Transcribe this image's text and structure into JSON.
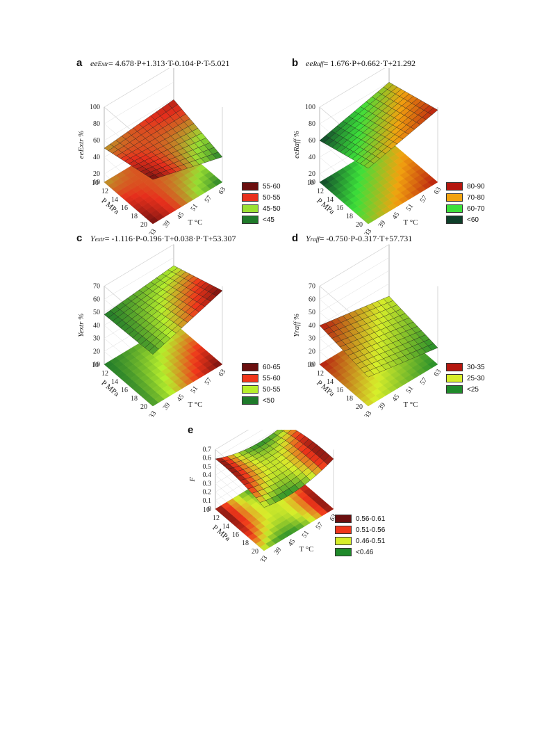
{
  "chart_data": [
    {
      "type": "surface",
      "panel": "a",
      "equation_var": "ee",
      "equation_sub": "Extr",
      "equation_rhs": "= 4.678·P+1.313·T-0.104·P·T-5.021",
      "zlabel": "ee",
      "zlabel_sub": "Extr",
      "zlabel_unit": "%",
      "xlabel": "T °C",
      "ylabel": "P MPa",
      "z_ticks": [
        "100",
        "80",
        "60",
        "40",
        "20",
        "10"
      ],
      "y_ticks": [
        "10",
        "12",
        "14",
        "16",
        "18",
        "20"
      ],
      "x_ticks": [
        "33",
        "39",
        "45",
        "51",
        "57",
        "63"
      ],
      "coef": {
        "P": 4.678,
        "T": 1.313,
        "PT": -0.104,
        "c": -5.021
      },
      "legend": [
        {
          "label": "55-60",
          "color": "#6b0f0f"
        },
        {
          "label": "50-55",
          "color": "#e8301c"
        },
        {
          "label": "45-50",
          "color": "#9be032"
        },
        {
          "label": "<45",
          "color": "#1f7a2a"
        }
      ]
    },
    {
      "type": "surface",
      "panel": "b",
      "equation_var": "ee",
      "equation_sub": "Raff",
      "equation_rhs": "= 1.676·P+0.662·T+21.292",
      "zlabel": "ee",
      "zlabel_sub": "Raff",
      "zlabel_unit": "%",
      "xlabel": "T °C",
      "ylabel": "P MPa",
      "z_ticks": [
        "100",
        "80",
        "60",
        "40",
        "20",
        "10"
      ],
      "y_ticks": [
        "10",
        "12",
        "14",
        "16",
        "18",
        "20"
      ],
      "x_ticks": [
        "33",
        "39",
        "45",
        "51",
        "57",
        "63"
      ],
      "coef": {
        "P": 1.676,
        "T": 0.662,
        "PT": 0,
        "c": 21.292
      },
      "legend": [
        {
          "label": "80-90",
          "color": "#b5170f"
        },
        {
          "label": "70-80",
          "color": "#f2a30f"
        },
        {
          "label": "60-70",
          "color": "#3ce03a"
        },
        {
          "label": "<60",
          "color": "#0f3f2a"
        }
      ]
    },
    {
      "type": "surface",
      "panel": "c",
      "equation_var": "Y",
      "equation_sub": "extr",
      "equation_rhs": "= -1.116·P-0.196·T+0.038·P·T+53.307",
      "zlabel": "Y",
      "zlabel_sub": "extr",
      "zlabel_unit": "%",
      "xlabel": "T °C",
      "ylabel": "P MPa",
      "z_ticks": [
        "70",
        "60",
        "50",
        "40",
        "30",
        "20",
        "10"
      ],
      "y_ticks": [
        "10",
        "12",
        "14",
        "16",
        "18",
        "20"
      ],
      "x_ticks": [
        "33",
        "39",
        "45",
        "51",
        "57",
        "63"
      ],
      "coef": {
        "P": -1.116,
        "T": -0.196,
        "PT": 0.038,
        "c": 53.307
      },
      "legend": [
        {
          "label": "60-65",
          "color": "#6b0f0f"
        },
        {
          "label": "55-60",
          "color": "#f0361a"
        },
        {
          "label": "50-55",
          "color": "#b7ef2c"
        },
        {
          "label": "<50",
          "color": "#1f7a2a"
        }
      ]
    },
    {
      "type": "surface",
      "panel": "d",
      "equation_var": "Y",
      "equation_sub": "raff",
      "equation_rhs": "= -0.750·P-0.317·T+57.731",
      "zlabel": "Y",
      "zlabel_sub": "raff",
      "zlabel_unit": "%",
      "xlabel": "T °C",
      "ylabel": "P MPa",
      "z_ticks": [
        "70",
        "60",
        "50",
        "40",
        "30",
        "20",
        "10"
      ],
      "y_ticks": [
        "10",
        "12",
        "14",
        "16",
        "18",
        "20"
      ],
      "x_ticks": [
        "33",
        "39",
        "45",
        "51",
        "57",
        "63"
      ],
      "coef": {
        "P": -0.75,
        "T": -0.317,
        "PT": 0,
        "c": 57.731
      },
      "legend": [
        {
          "label": "30-35",
          "color": "#b5170f"
        },
        {
          "label": "25-30",
          "color": "#d7ee2a"
        },
        {
          "label": "<25",
          "color": "#1f8a2a"
        }
      ]
    },
    {
      "type": "surface",
      "panel": "e",
      "equation_var": "",
      "equation_sub": "",
      "equation_rhs": "",
      "zlabel": "F",
      "zlabel_sub": "",
      "zlabel_unit": "",
      "xlabel": "T °C",
      "ylabel": "P MPa",
      "z_ticks": [
        "0.7",
        "0.6",
        "0.5",
        "0.4",
        "0.3",
        "0.2",
        "0.1",
        "0"
      ],
      "y_ticks": [
        "10",
        "12",
        "14",
        "16",
        "18",
        "20"
      ],
      "x_ticks": [
        "33",
        "39",
        "45",
        "51",
        "57",
        "63"
      ],
      "legend": [
        {
          "label": "0.56-0.61",
          "color": "#6b0f0f"
        },
        {
          "label": "0.51-0.56",
          "color": "#f0361a"
        },
        {
          "label": "0.46-0.51",
          "color": "#d7ee2a"
        },
        {
          "label": "<0.46",
          "color": "#1f8a2a"
        }
      ]
    }
  ]
}
